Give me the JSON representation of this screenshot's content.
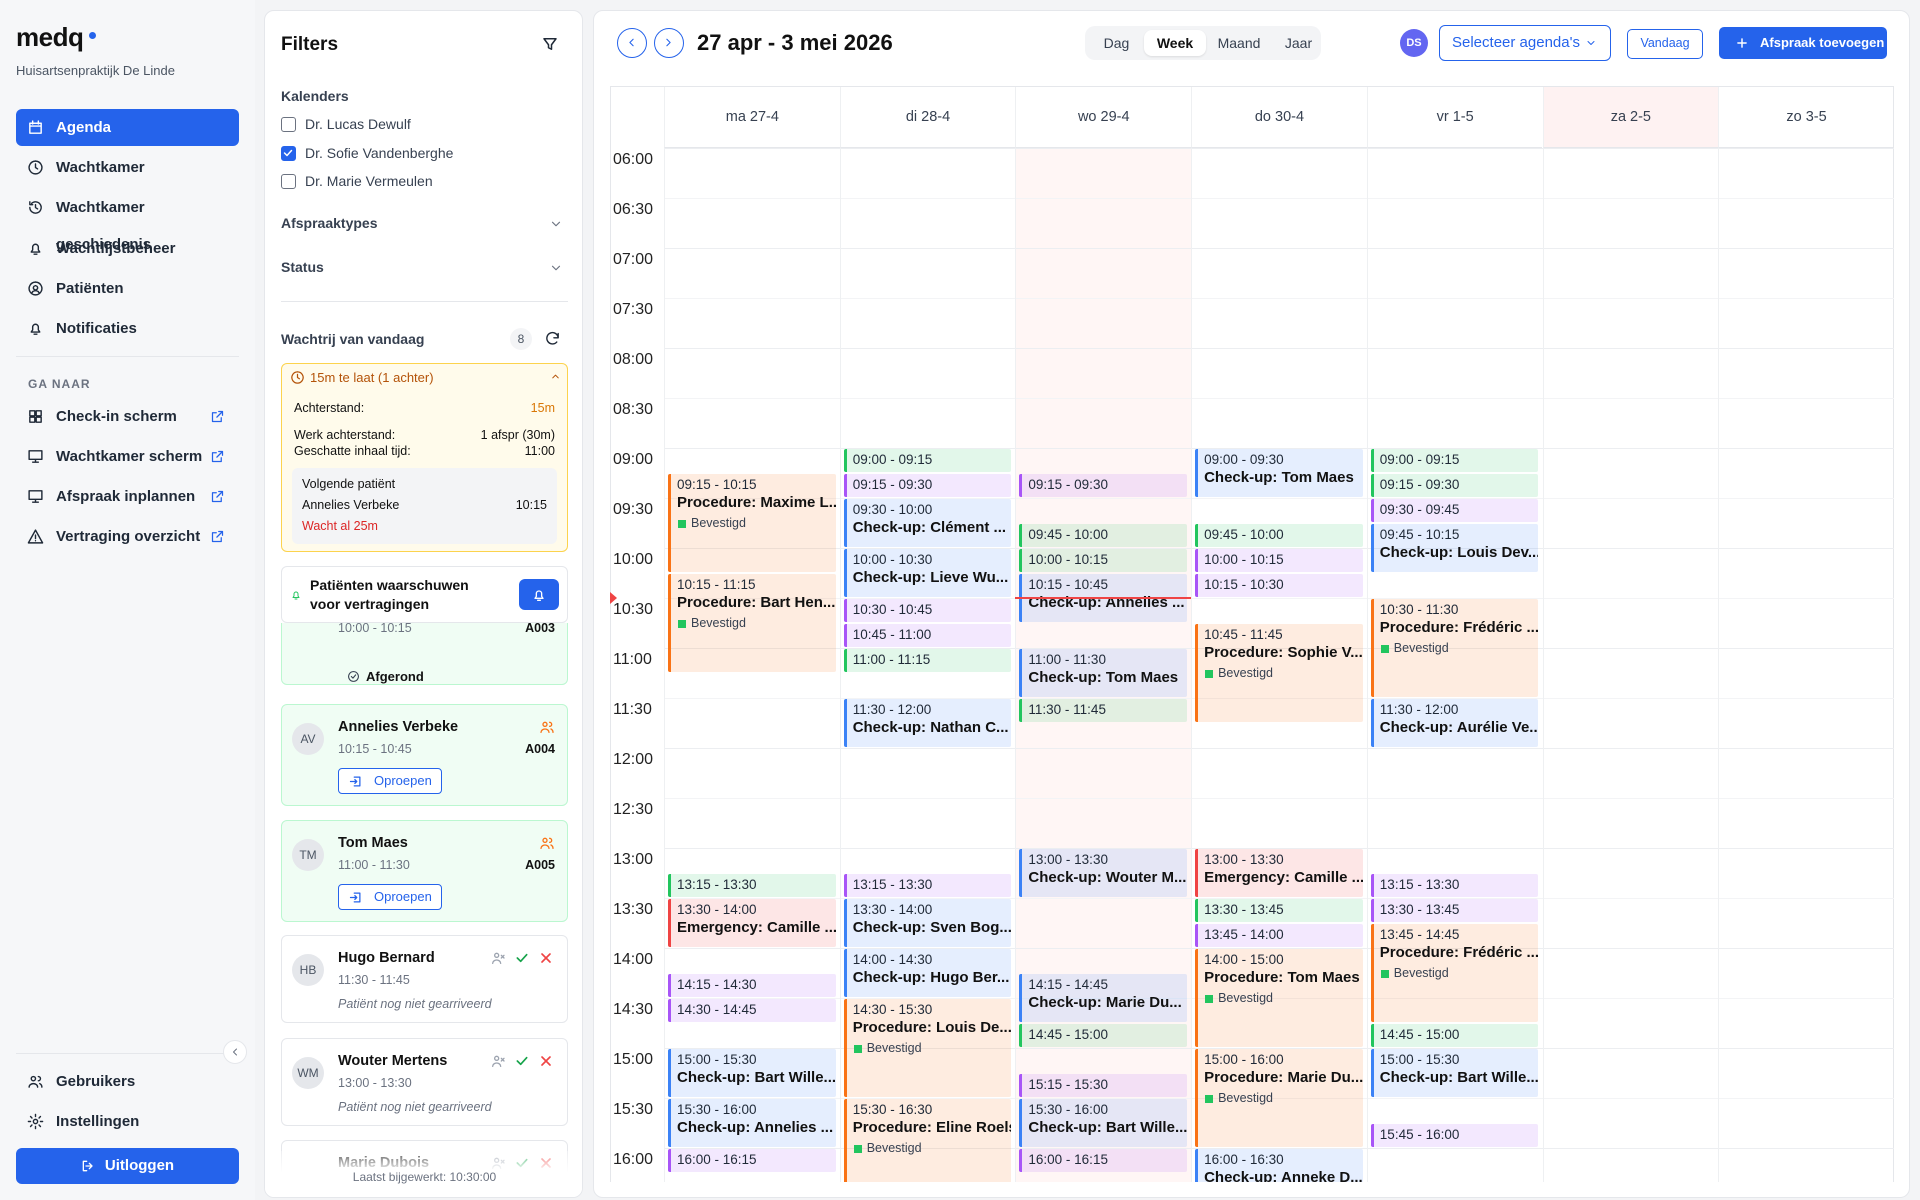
{
  "sidebar": {
    "brand": "medq",
    "practice": "Huisartsenpraktijk De Linde",
    "nav": [
      {
        "label": "Agenda",
        "active": true
      },
      {
        "label": "Wachtkamer"
      },
      {
        "label": "Wachtkamer geschiedenis"
      },
      {
        "label": "Wachtlijstbeheer"
      },
      {
        "label": "Patiënten"
      },
      {
        "label": "Notificaties"
      }
    ],
    "section": "GA NAAR",
    "links": [
      "Check-in scherm",
      "Wachtkamer scherm",
      "Afspraak inplannen",
      "Vertraging overzicht"
    ],
    "bottom": [
      "Gebruikers",
      "Instellingen"
    ],
    "logout": "Uitloggen"
  },
  "filters": {
    "title": "Filters",
    "calendars_label": "Kalenders",
    "calendars": [
      {
        "name": "Dr. Lucas Dewulf",
        "checked": false
      },
      {
        "name": "Dr. Sofie Vandenberghe",
        "checked": true
      },
      {
        "name": "Dr. Marie Vermeulen",
        "checked": false
      }
    ],
    "sections": [
      "Afspraaktypes",
      "Status"
    ],
    "queue": {
      "title": "Wachtrij van vandaag",
      "count": 8,
      "alert": {
        "title": "15m te laat (1 achter)",
        "rows": [
          [
            "Achterstand:",
            "15m"
          ],
          [
            "Werk achterstand:",
            "1 afspr (30m)"
          ],
          [
            "Geschatte inhaal tijd:",
            "11:00"
          ]
        ],
        "next_label": "Volgende patiënt",
        "next_name": "Annelies Verbeke",
        "next_time": "10:15",
        "waiting": "Wacht al 25m"
      },
      "warn": "Patiënten waarschuwen voor vertragingen",
      "items": [
        {
          "time": "10:00 - 10:15",
          "code": "A003",
          "action": "Afgerond",
          "state": "done"
        },
        {
          "initials": "AV",
          "name": "Annelies Verbeke",
          "time": "10:15 - 10:45",
          "code": "A004",
          "action": "Oproepen",
          "state": "present"
        },
        {
          "initials": "TM",
          "name": "Tom Maes",
          "time": "11:00 - 11:30",
          "code": "A005",
          "action": "Oproepen",
          "state": "present"
        },
        {
          "initials": "HB",
          "name": "Hugo Bernard",
          "time": "11:30 - 11:45",
          "note": "Patiënt nog niet gearriveerd",
          "state": "expected"
        },
        {
          "initials": "WM",
          "name": "Wouter Mertens",
          "time": "13:00 - 13:30",
          "note": "Patiënt nog niet gearriveerd",
          "state": "expected"
        },
        {
          "name": "Marie Dubois",
          "state": "expected"
        }
      ],
      "updated": "Laatst bijgewerkt: 10:30:00"
    }
  },
  "calendar": {
    "range": "27 apr - 3 mei 2026",
    "views": [
      "Dag",
      "Week",
      "Maand",
      "Jaar"
    ],
    "active_view": 1,
    "avatar": "DS",
    "select": "Selecteer agenda's",
    "today": "Vandaag",
    "add": "Afspraak toevoegen",
    "now": "10:30",
    "today_index": 2,
    "highlight_header": 5,
    "times": [
      "06:00",
      "06:30",
      "07:00",
      "07:30",
      "08:00",
      "08:30",
      "09:00",
      "09:30",
      "10:00",
      "10:30",
      "11:00",
      "11:30",
      "12:00",
      "12:30",
      "13:00",
      "13:30",
      "14:00",
      "14:30",
      "15:00",
      "15:30",
      "16:00"
    ],
    "days": [
      {
        "label": "ma 27-4",
        "events": [
          {
            "time": "09:15 - 10:15",
            "title": "Procedure: Maxime L...",
            "status": "Bevestigd",
            "color": "#f97316"
          },
          {
            "time": "10:15 - 11:15",
            "title": "Procedure: Bart Hen...",
            "status": "Bevestigd",
            "color": "#f97316"
          },
          {
            "time": "13:15 - 13:30",
            "color": "#22c55e"
          },
          {
            "time": "13:30 - 14:00",
            "title": "Emergency: Camille ...",
            "color": "#ef4444"
          },
          {
            "time": "14:15 - 14:30",
            "color": "#a855f7"
          },
          {
            "time": "14:30 - 14:45",
            "color": "#a855f7"
          },
          {
            "time": "15:00 - 15:30",
            "title": "Check-up: Bart Wille...",
            "color": "#3b82f6"
          },
          {
            "time": "15:30 - 16:00",
            "title": "Check-up: Annelies ...",
            "color": "#3b82f6"
          },
          {
            "time": "16:00 - 16:15",
            "color": "#a855f7"
          }
        ]
      },
      {
        "label": "di 28-4",
        "events": [
          {
            "time": "09:00 - 09:15",
            "color": "#22c55e"
          },
          {
            "time": "09:15 - 09:30",
            "color": "#a855f7"
          },
          {
            "time": "09:30 - 10:00",
            "title": "Check-up: Clément ...",
            "color": "#3b82f6"
          },
          {
            "time": "10:00 - 10:30",
            "title": "Check-up: Lieve Wu...",
            "color": "#3b82f6"
          },
          {
            "time": "10:30 - 10:45",
            "color": "#a855f7"
          },
          {
            "time": "10:45 - 11:00",
            "color": "#a855f7"
          },
          {
            "time": "11:00 - 11:15",
            "color": "#22c55e"
          },
          {
            "time": "11:30 - 12:00",
            "title": "Check-up: Nathan C...",
            "color": "#3b82f6"
          },
          {
            "time": "13:15 - 13:30",
            "color": "#a855f7"
          },
          {
            "time": "13:30 - 14:00",
            "title": "Check-up: Sven Bog...",
            "color": "#3b82f6"
          },
          {
            "time": "14:00 - 14:30",
            "title": "Check-up: Hugo Ber...",
            "color": "#3b82f6"
          },
          {
            "time": "14:30 - 15:30",
            "title": "Procedure: Louis De...",
            "status": "Bevestigd",
            "color": "#f97316"
          },
          {
            "time": "15:30 - 16:30",
            "title": "Procedure: Eline Roels",
            "status": "Bevestigd",
            "color": "#f97316"
          }
        ]
      },
      {
        "label": "wo 29-4",
        "events": [
          {
            "time": "09:15 - 09:30",
            "color": "#a855f7"
          },
          {
            "time": "09:45 - 10:00",
            "color": "#22c55e"
          },
          {
            "time": "10:00 - 10:15",
            "color": "#22c55e"
          },
          {
            "time": "10:15 - 10:45",
            "title": "Check-up: Annelies ...",
            "color": "#3b82f6"
          },
          {
            "time": "11:00 - 11:30",
            "title": "Check-up: Tom Maes",
            "color": "#3b82f6"
          },
          {
            "time": "11:30 - 11:45",
            "color": "#22c55e"
          },
          {
            "time": "13:00 - 13:30",
            "title": "Check-up: Wouter M...",
            "color": "#3b82f6"
          },
          {
            "time": "14:15 - 14:45",
            "title": "Check-up: Marie Du...",
            "color": "#3b82f6"
          },
          {
            "time": "14:45 - 15:00",
            "color": "#22c55e"
          },
          {
            "time": "15:15 - 15:30",
            "color": "#a855f7"
          },
          {
            "time": "15:30 - 16:00",
            "title": "Check-up: Bart Wille...",
            "color": "#3b82f6"
          },
          {
            "time": "16:00 - 16:15",
            "color": "#a855f7"
          }
        ]
      },
      {
        "label": "do 30-4",
        "events": [
          {
            "time": "09:00 - 09:30",
            "title": "Check-up: Tom Maes",
            "color": "#3b82f6"
          },
          {
            "time": "09:45 - 10:00",
            "color": "#22c55e"
          },
          {
            "time": "10:00 - 10:15",
            "color": "#a855f7"
          },
          {
            "time": "10:15 - 10:30",
            "color": "#a855f7"
          },
          {
            "time": "10:45 - 11:45",
            "title": "Procedure: Sophie V...",
            "status": "Bevestigd",
            "color": "#f97316"
          },
          {
            "time": "13:00 - 13:30",
            "title": "Emergency: Camille ...",
            "color": "#ef4444"
          },
          {
            "time": "13:30 - 13:45",
            "color": "#22c55e"
          },
          {
            "time": "13:45 - 14:00",
            "color": "#a855f7"
          },
          {
            "time": "14:00 - 15:00",
            "title": "Procedure: Tom Maes",
            "status": "Bevestigd",
            "color": "#f97316"
          },
          {
            "time": "15:00 - 16:00",
            "title": "Procedure: Marie Du...",
            "status": "Bevestigd",
            "color": "#f97316"
          },
          {
            "time": "16:00 - 16:30",
            "title": "Check-up: Anneke D...",
            "color": "#3b82f6"
          }
        ]
      },
      {
        "label": "vr 1-5",
        "events": [
          {
            "time": "09:00 - 09:15",
            "color": "#22c55e"
          },
          {
            "time": "09:15 - 09:30",
            "color": "#22c55e"
          },
          {
            "time": "09:30 - 09:45",
            "color": "#a855f7"
          },
          {
            "time": "09:45 - 10:15",
            "title": "Check-up: Louis Dev...",
            "color": "#3b82f6"
          },
          {
            "time": "10:30 - 11:30",
            "title": "Procedure: Frédéric ...",
            "status": "Bevestigd",
            "color": "#f97316"
          },
          {
            "time": "11:30 - 12:00",
            "title": "Check-up: Aurélie Ve...",
            "color": "#3b82f6"
          },
          {
            "time": "13:15 - 13:30",
            "color": "#a855f7"
          },
          {
            "time": "13:30 - 13:45",
            "color": "#a855f7"
          },
          {
            "time": "13:45 - 14:45",
            "title": "Procedure: Frédéric ...",
            "status": "Bevestigd",
            "color": "#f97316"
          },
          {
            "time": "14:45 - 15:00",
            "color": "#22c55e"
          },
          {
            "time": "15:00 - 15:30",
            "title": "Check-up: Bart Wille...",
            "color": "#3b82f6"
          },
          {
            "time": "15:45 - 16:00",
            "color": "#a855f7"
          }
        ]
      },
      {
        "label": "za 2-5",
        "events": []
      },
      {
        "label": "zo 3-5",
        "events": []
      }
    ]
  }
}
